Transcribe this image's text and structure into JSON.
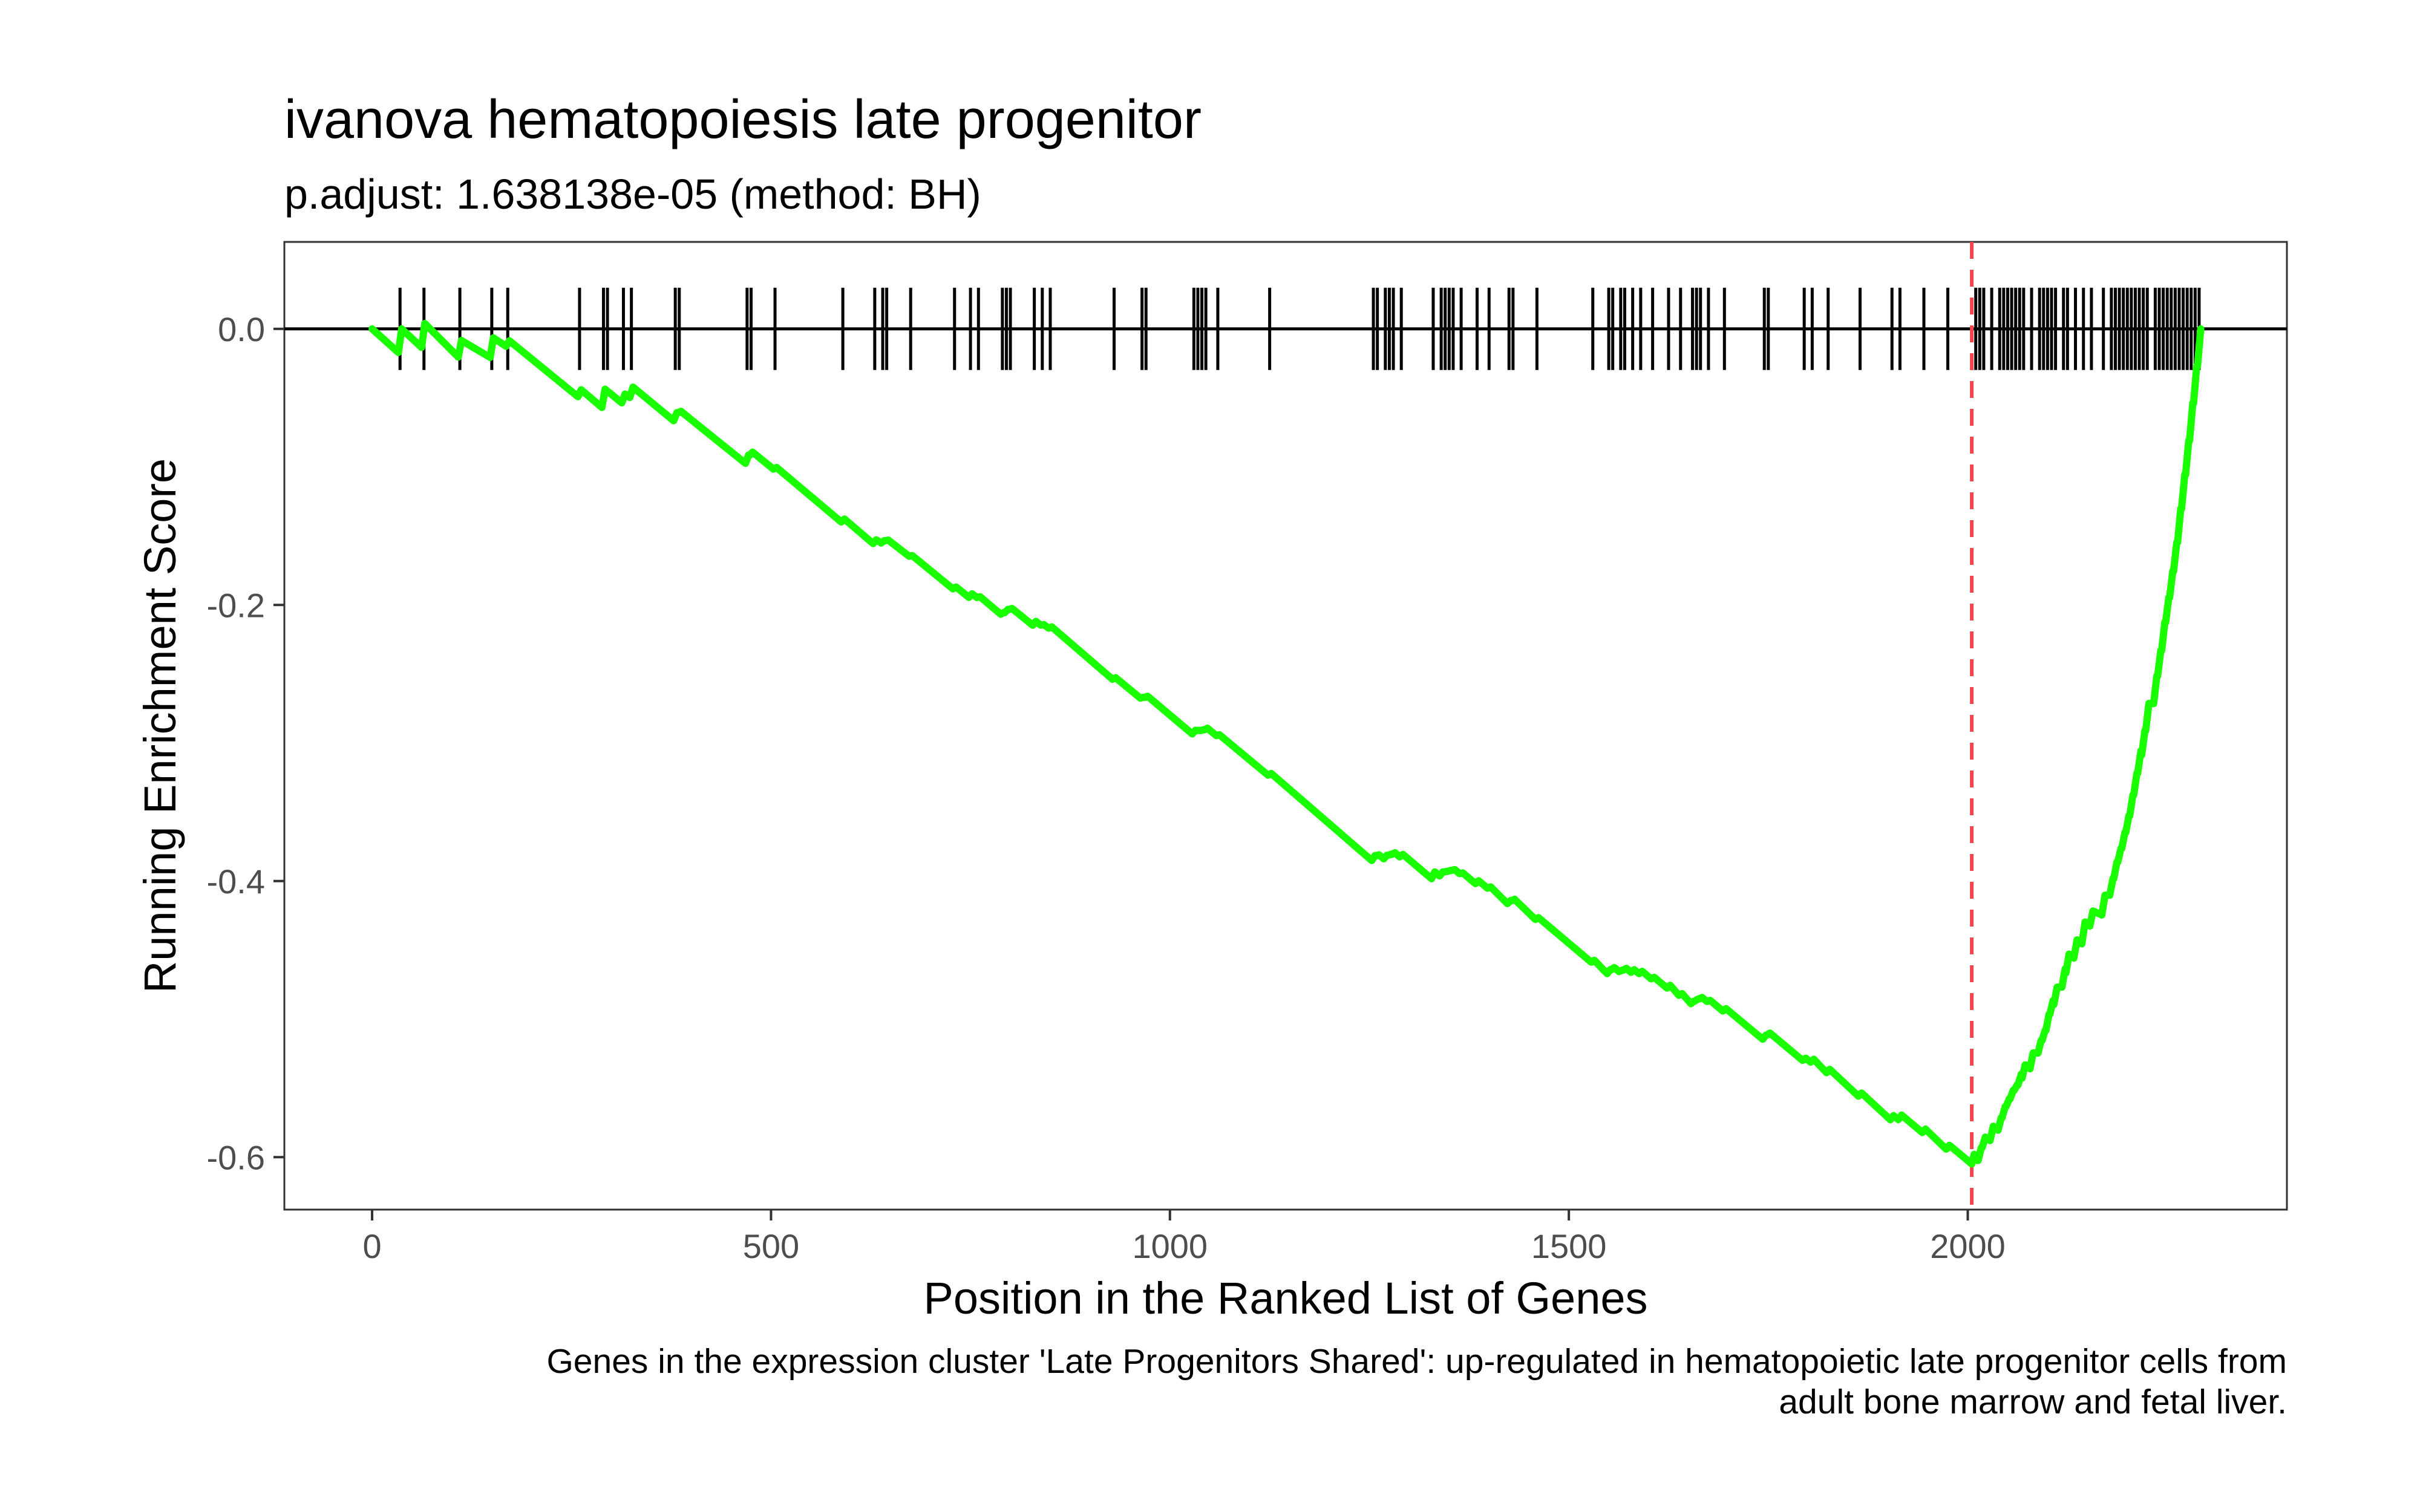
{
  "chart_data": {
    "type": "line",
    "title": "ivanova hematopoiesis late progenitor",
    "subtitle": "p.adjust: 1.638138e-05 (method: BH)",
    "xlabel": "Position in the Ranked List of Genes",
    "ylabel": "Running Enrichment Score",
    "caption_lines": [
      "Genes in the expression cluster 'Late Progenitors Shared': up-regulated in hematopoietic late progenitor cells from",
      "adult bone marrow and fetal liver."
    ],
    "xlim": [
      -110,
      2400
    ],
    "ylim": [
      -0.638,
      0.063
    ],
    "x_ticks": [
      0,
      500,
      1000,
      1500,
      2000
    ],
    "x_tick_labels": [
      "0",
      "500",
      "1000",
      "1500",
      "2000"
    ],
    "y_ticks": [
      0.0,
      -0.2,
      -0.4,
      -0.6
    ],
    "y_tick_labels": [
      "0.0",
      "-0.2",
      "-0.4",
      "-0.6"
    ],
    "grid": false,
    "colors": {
      "curve": "#19ff00",
      "hits": "#000000",
      "zero_line": "#000000",
      "peak_line": "#f0464f",
      "panel_border": "#333333"
    },
    "peak_position": 2005,
    "gene_hits": [
      35,
      65,
      110,
      150,
      170,
      260,
      290,
      295,
      315,
      325,
      380,
      385,
      470,
      475,
      505,
      590,
      630,
      640,
      645,
      675,
      730,
      750,
      760,
      790,
      795,
      800,
      830,
      840,
      850,
      930,
      965,
      970,
      1030,
      1035,
      1040,
      1045,
      1060,
      1125,
      1255,
      1260,
      1270,
      1275,
      1280,
      1290,
      1330,
      1340,
      1345,
      1350,
      1355,
      1365,
      1385,
      1400,
      1425,
      1430,
      1460,
      1530,
      1550,
      1555,
      1565,
      1570,
      1580,
      1590,
      1605,
      1625,
      1640,
      1655,
      1660,
      1665,
      1675,
      1695,
      1745,
      1750,
      1795,
      1805,
      1825,
      1865,
      1905,
      1915,
      1945,
      1975,
      2010,
      2015,
      2020,
      2030,
      2040,
      2045,
      2050,
      2055,
      2060,
      2065,
      2070,
      2080,
      2090,
      2095,
      2100,
      2105,
      2110,
      2120,
      2125,
      2135,
      2145,
      2155,
      2170,
      2180,
      2185,
      2190,
      2195,
      2200,
      2205,
      2210,
      2215,
      2220,
      2225,
      2235,
      2240,
      2245,
      2250,
      2255,
      2260,
      2265,
      2270,
      2275,
      2280,
      2285,
      2290
    ],
    "series": [
      {
        "x": [
          0,
          33,
          37,
          62,
          66,
          108,
          112,
          148,
          152,
          168,
          172,
          258,
          262,
          288,
          292,
          313,
          317,
          323,
          327,
          378,
          382,
          383,
          387,
          468,
          472,
          473,
          477,
          503,
          507,
          588,
          592,
          628,
          632,
          638,
          642,
          643,
          647,
          673,
          677,
          728,
          732,
          748,
          752,
          758,
          762,
          788,
          792,
          793,
          797,
          798,
          802,
          828,
          832,
          838,
          842,
          848,
          852,
          928,
          932,
          963,
          967,
          968,
          972,
          1028,
          1032,
          1033,
          1037,
          1038,
          1042,
          1043,
          1047,
          1058,
          1062,
          1123,
          1127,
          1253,
          1257,
          1258,
          1262,
          1268,
          1272,
          1273,
          1277,
          1278,
          1282,
          1288,
          1292,
          1328,
          1332,
          1338,
          1342,
          1343,
          1347,
          1348,
          1352,
          1353,
          1357,
          1363,
          1367,
          1383,
          1387,
          1398,
          1402,
          1423,
          1427,
          1428,
          1432,
          1458,
          1462,
          1528,
          1532,
          1548,
          1552,
          1553,
          1557,
          1563,
          1567,
          1568,
          1572,
          1578,
          1582,
          1588,
          1592,
          1603,
          1607,
          1623,
          1627,
          1638,
          1642,
          1653,
          1657,
          1658,
          1662,
          1663,
          1667,
          1673,
          1677,
          1693,
          1697,
          1743,
          1747,
          1748,
          1752,
          1793,
          1797,
          1803,
          1807,
          1823,
          1827,
          1863,
          1867,
          1903,
          1907,
          1913,
          1917,
          1943,
          1947,
          1973,
          1977,
          2005,
          2008,
          2012,
          2013,
          2017,
          2018,
          2022,
          2028,
          2032,
          2038,
          2042,
          2043,
          2047,
          2048,
          2052,
          2053,
          2057,
          2058,
          2062,
          2063,
          2067,
          2068,
          2072,
          2078,
          2082,
          2088,
          2092,
          2093,
          2097,
          2098,
          2102,
          2103,
          2107,
          2108,
          2112,
          2118,
          2122,
          2123,
          2127,
          2133,
          2137,
          2143,
          2147,
          2153,
          2157,
          2168,
          2172,
          2178,
          2182,
          2183,
          2187,
          2188,
          2192,
          2193,
          2197,
          2198,
          2202,
          2203,
          2207,
          2208,
          2212,
          2213,
          2217,
          2218,
          2222,
          2223,
          2227,
          2233,
          2237,
          2238,
          2242,
          2243,
          2247,
          2248,
          2252,
          2253,
          2257,
          2258,
          2262,
          2263,
          2267,
          2268,
          2272,
          2273,
          2277,
          2278,
          2282,
          2283,
          2287,
          2288,
          2292
        ],
        "y": [
          0.0,
          -0.0171,
          0.0,
          -0.0134,
          0.0039,
          -0.0204,
          -0.0084,
          -0.0207,
          -0.0065,
          -0.0126,
          -0.0086,
          -0.0491,
          -0.0441,
          -0.0569,
          -0.0437,
          -0.0536,
          -0.0472,
          -0.0497,
          -0.0422,
          -0.0665,
          -0.0607,
          -0.0609,
          -0.0597,
          -0.0974,
          -0.0913,
          -0.0917,
          -0.0893,
          -0.1016,
          -0.1004,
          -0.1399,
          -0.1377,
          -0.1555,
          -0.1528,
          -0.1551,
          -0.1534,
          -0.1534,
          -0.153,
          -0.1647,
          -0.1642,
          -0.1883,
          -0.187,
          -0.1945,
          -0.1919,
          -0.1946,
          -0.194,
          -0.2067,
          -0.2053,
          -0.2055,
          -0.2032,
          -0.2034,
          -0.2025,
          -0.2147,
          -0.2119,
          -0.2146,
          -0.2142,
          -0.2168,
          -0.2159,
          -0.2538,
          -0.2527,
          -0.2675,
          -0.2668,
          -0.267,
          -0.2661,
          -0.2934,
          -0.2908,
          -0.291,
          -0.2908,
          -0.291,
          -0.2904,
          -0.2905,
          -0.2893,
          -0.2946,
          -0.294,
          -0.3233,
          -0.3221,
          -0.3851,
          -0.3815,
          -0.3816,
          -0.381,
          -0.3839,
          -0.3813,
          -0.3814,
          -0.3806,
          -0.3807,
          -0.3795,
          -0.3825,
          -0.3807,
          -0.3983,
          -0.3934,
          -0.3963,
          -0.3934,
          -0.3935,
          -0.393,
          -0.393,
          -0.3922,
          -0.3923,
          -0.3917,
          -0.3946,
          -0.3941,
          -0.4019,
          -0.3998,
          -0.4052,
          -0.4042,
          -0.4163,
          -0.4141,
          -0.4143,
          -0.4132,
          -0.4278,
          -0.4265,
          -0.4587,
          -0.4574,
          -0.4671,
          -0.4642,
          -0.4643,
          -0.4627,
          -0.4656,
          -0.4645,
          -0.4646,
          -0.4632,
          -0.4661,
          -0.4642,
          -0.4671,
          -0.4654,
          -0.4708,
          -0.4697,
          -0.4775,
          -0.4755,
          -0.4828,
          -0.4815,
          -0.4888,
          -0.4869,
          -0.487,
          -0.4854,
          -0.4855,
          -0.4843,
          -0.4872,
          -0.4864,
          -0.4941,
          -0.4924,
          -0.5146,
          -0.5116,
          -0.5117,
          -0.5101,
          -0.5299,
          -0.5283,
          -0.5312,
          -0.5291,
          -0.5388,
          -0.5364,
          -0.5558,
          -0.5536,
          -0.5729,
          -0.5699,
          -0.5728,
          -0.5695,
          -0.5822,
          -0.5797,
          -0.5942,
          -0.5914,
          -0.6049,
          -0.598,
          -0.6024,
          -0.6024,
          -0.5932,
          -0.5932,
          -0.5855,
          -0.588,
          -0.5776,
          -0.5805,
          -0.5714,
          -0.5715,
          -0.5633,
          -0.5634,
          -0.5578,
          -0.5579,
          -0.5516,
          -0.5517,
          -0.5476,
          -0.5477,
          -0.5399,
          -0.5428,
          -0.5331,
          -0.536,
          -0.5245,
          -0.5246,
          -0.5155,
          -0.5156,
          -0.5081,
          -0.5082,
          -0.4963,
          -0.4964,
          -0.4865,
          -0.4894,
          -0.4768,
          -0.4769,
          -0.4637,
          -0.4666,
          -0.4529,
          -0.4558,
          -0.4426,
          -0.4455,
          -0.4297,
          -0.4326,
          -0.4217,
          -0.4246,
          -0.4102,
          -0.4103,
          -0.3982,
          -0.3983,
          -0.3862,
          -0.3863,
          -0.3764,
          -0.3765,
          -0.3648,
          -0.3649,
          -0.3527,
          -0.3528,
          -0.3376,
          -0.3377,
          -0.3218,
          -0.3219,
          -0.3057,
          -0.3086,
          -0.291,
          -0.2911,
          -0.2713,
          -0.2714,
          -0.2514,
          -0.2515,
          -0.2329,
          -0.233,
          -0.2125,
          -0.2126,
          -0.1946,
          -0.1947,
          -0.1754,
          -0.1755,
          -0.1546,
          -0.1547,
          -0.1302,
          -0.1303,
          -0.1056,
          -0.1057,
          -0.0809,
          -0.081,
          -0.0538,
          -0.0539,
          -0.0267,
          -0.0268,
          0.0
        ]
      }
    ]
  }
}
